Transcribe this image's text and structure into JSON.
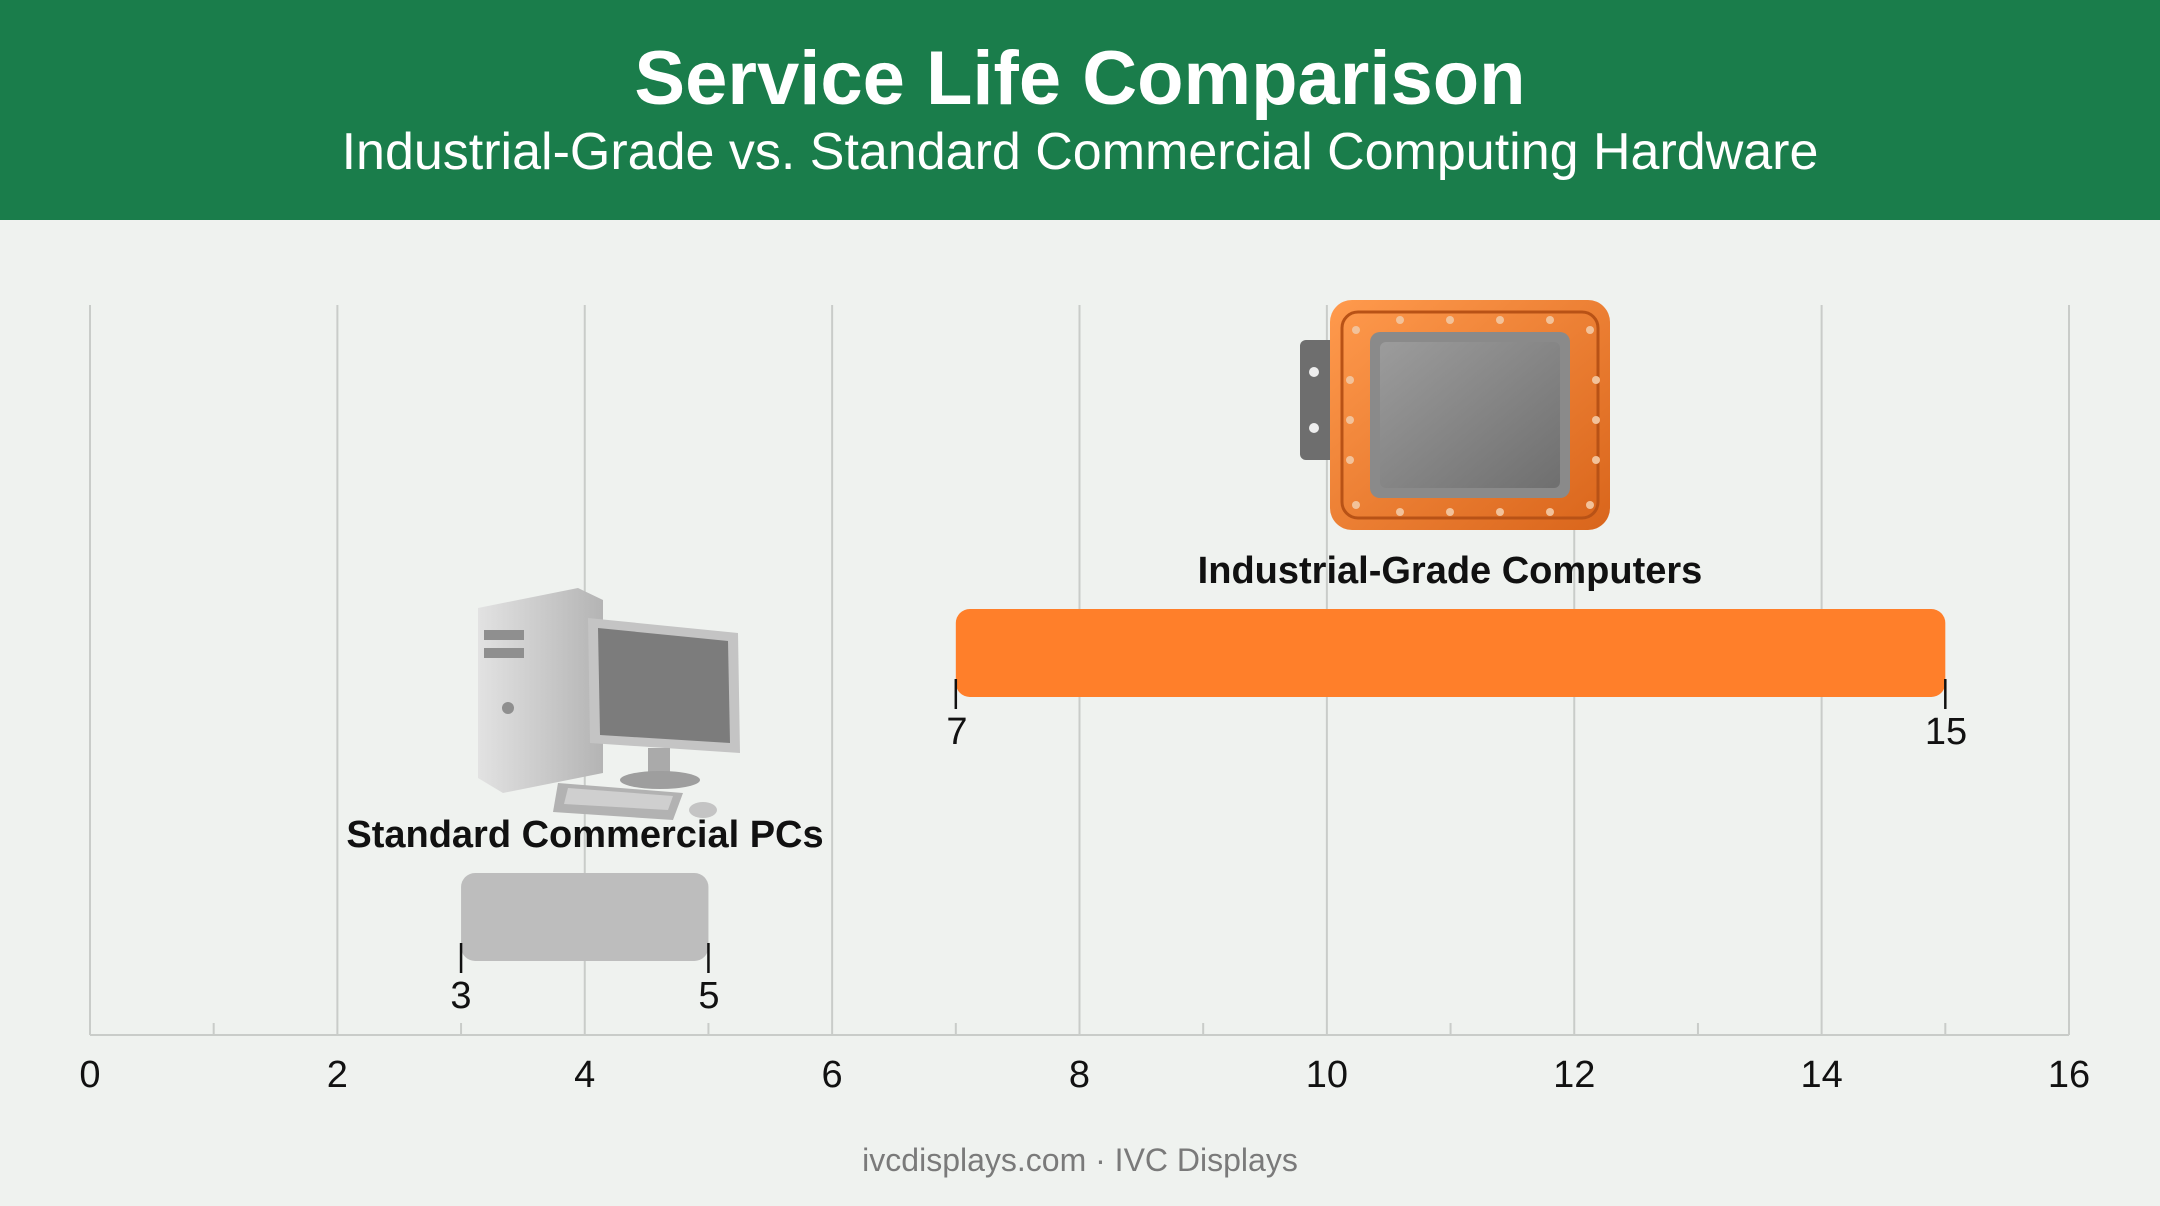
{
  "title": "Service Life Comparison",
  "subtitle": "Industrial-Grade vs. Standard Commercial Computing Hardware",
  "footer": "ivcdisplays.com · IVC Displays",
  "colors": {
    "header_bg": "#1a7d4b",
    "industrial": "#ff7f2a",
    "commercial": "#bdbdbd"
  },
  "chart_data": {
    "type": "bar",
    "orientation": "horizontal-range",
    "xlim": [
      0,
      16
    ],
    "x_ticks": [
      0,
      2,
      4,
      6,
      8,
      10,
      12,
      14,
      16
    ],
    "grid": true,
    "series": [
      {
        "name": "Industrial-Grade Computers",
        "start": 7,
        "end": 15,
        "start_label": "7",
        "end_label": "15",
        "color": "#ff7f2a",
        "icon": "industrial-panel-computer-icon"
      },
      {
        "name": "Standard Commercial PCs",
        "start": 3,
        "end": 5,
        "start_label": "3",
        "end_label": "5",
        "color": "#bdbdbd",
        "icon": "desktop-pc-icon"
      }
    ]
  }
}
